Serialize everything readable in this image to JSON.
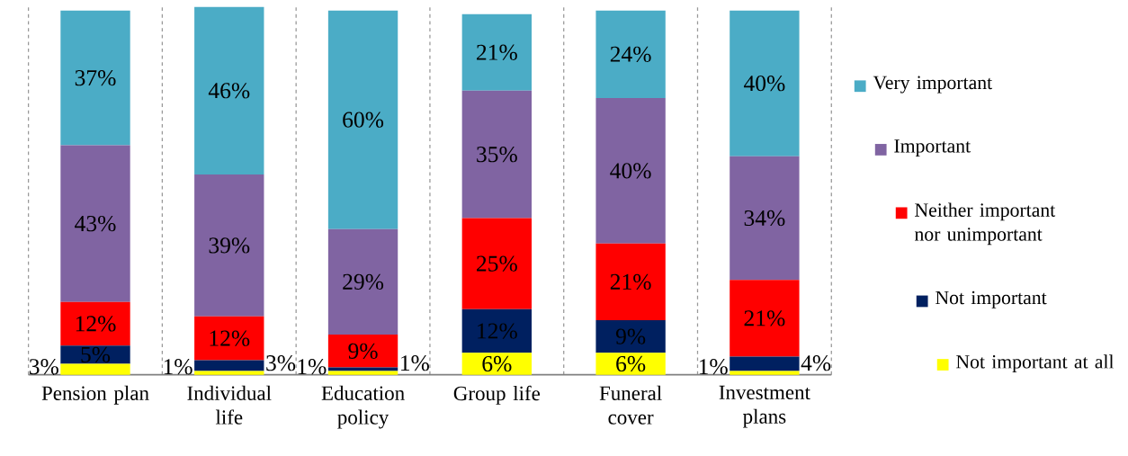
{
  "chart_data": {
    "type": "bar",
    "stacked": true,
    "legend": "right",
    "grid": true,
    "categories": [
      "Pension plan",
      "Individual life",
      "Education policy",
      "Group life",
      "Funeral cover",
      "Investment plans"
    ],
    "series": [
      {
        "name": "Not important at all",
        "color": "#ffff00",
        "values": [
          3,
          1,
          1,
          6,
          6,
          1
        ],
        "value_labels": [
          "3%",
          "1%",
          "1%",
          "6%",
          "6%",
          "1%"
        ]
      },
      {
        "name": "Not important",
        "color": "#002060",
        "values": [
          5,
          3,
          1,
          12,
          9,
          4
        ],
        "value_labels": [
          "5%",
          "3%",
          "1%",
          "12%",
          "9%",
          "4%"
        ]
      },
      {
        "name": "Neither important nor unimportant",
        "color": "#ff0000",
        "values": [
          12,
          12,
          9,
          25,
          21,
          21
        ],
        "value_labels": [
          "12%",
          "12%",
          "9%",
          "25%",
          "21%",
          "21%"
        ]
      },
      {
        "name": "Important",
        "color": "#8064a2",
        "values": [
          43,
          39,
          29,
          35,
          40,
          34
        ],
        "value_labels": [
          "43%",
          "39%",
          "29%",
          "35%",
          "40%",
          "34%"
        ]
      },
      {
        "name": "Very important",
        "color": "#4bacc6",
        "values": [
          37,
          46,
          60,
          21,
          24,
          40
        ],
        "value_labels": [
          "37%",
          "46%",
          "60%",
          "21%",
          "24%",
          "40%"
        ]
      }
    ]
  }
}
